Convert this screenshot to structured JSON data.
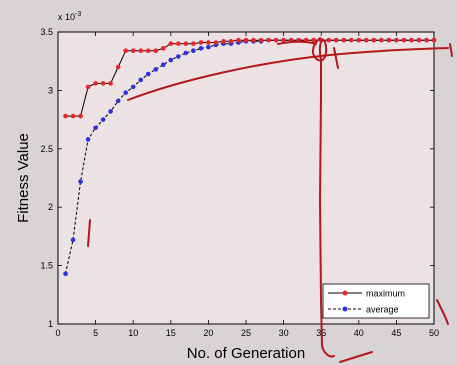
{
  "chart_data": {
    "type": "line",
    "title": "",
    "xlabel": "No. of Generation",
    "ylabel": "Fitness Value",
    "y_multiplier_label": "x 10",
    "y_multiplier_exponent": "-3",
    "xlim": [
      0,
      50
    ],
    "ylim": [
      0.001,
      0.0035
    ],
    "xticks": [
      0,
      5,
      10,
      15,
      20,
      25,
      30,
      35,
      40,
      45,
      50
    ],
    "xtick_labels": [
      "0",
      "5",
      "10",
      "15",
      "20",
      "25",
      "30",
      "35",
      "40",
      "45",
      "50"
    ],
    "yticks": [
      0.001,
      0.0015,
      0.002,
      0.0025,
      0.003,
      0.0035
    ],
    "ytick_labels": [
      "1",
      "1.5",
      "2",
      "2.5",
      "3",
      "3.5"
    ],
    "grid": false,
    "legend_position": "bottom-right",
    "series": [
      {
        "name": "maximum",
        "color": "#e8252a",
        "line_color": "#000000",
        "line_style": "solid",
        "x": [
          1,
          2,
          3,
          4,
          5,
          6,
          7,
          8,
          9,
          10,
          11,
          12,
          13,
          14,
          15,
          16,
          17,
          18,
          19,
          20,
          21,
          22,
          23,
          24,
          25,
          26,
          27,
          28,
          29,
          30,
          31,
          32,
          33,
          34,
          35,
          36,
          37,
          38,
          39,
          40,
          41,
          42,
          43,
          44,
          45,
          46,
          47,
          48,
          49,
          50
        ],
        "values": [
          0.00278,
          0.00278,
          0.00278,
          0.00303,
          0.00306,
          0.00306,
          0.00306,
          0.0032,
          0.00334,
          0.00334,
          0.00334,
          0.00334,
          0.00334,
          0.00336,
          0.0034,
          0.0034,
          0.0034,
          0.0034,
          0.00341,
          0.00341,
          0.00341,
          0.00342,
          0.00342,
          0.00343,
          0.00343,
          0.00343,
          0.00343,
          0.00343,
          0.00343,
          0.00343,
          0.00343,
          0.00343,
          0.00343,
          0.00343,
          0.00343,
          0.00343,
          0.00343,
          0.00343,
          0.00343,
          0.00343,
          0.00343,
          0.00343,
          0.00343,
          0.00343,
          0.00343,
          0.00343,
          0.00343,
          0.00343,
          0.00343,
          0.00343
        ]
      },
      {
        "name": "average",
        "color": "#2f2fe0",
        "line_color": "#000000",
        "line_style": "dashed",
        "x": [
          1,
          2,
          3,
          4,
          5,
          6,
          7,
          8,
          9,
          10,
          11,
          12,
          13,
          14,
          15,
          16,
          17,
          18,
          19,
          20,
          21,
          22,
          23,
          24,
          25,
          26,
          27,
          28,
          29,
          30,
          31,
          32,
          33,
          34,
          35,
          36,
          37,
          38,
          39,
          40,
          41,
          42,
          43,
          44,
          45,
          46,
          47,
          48,
          49,
          50
        ],
        "values": [
          0.00143,
          0.00172,
          0.00222,
          0.00258,
          0.00268,
          0.00275,
          0.00282,
          0.00291,
          0.00298,
          0.00303,
          0.00309,
          0.00314,
          0.00318,
          0.00322,
          0.00326,
          0.00329,
          0.00332,
          0.00334,
          0.00336,
          0.00337,
          0.00339,
          0.0034,
          0.0034,
          0.00341,
          0.00342,
          0.00342,
          0.00342,
          0.00343,
          0.00343,
          0.00343,
          0.00343,
          0.00343,
          0.00343,
          0.00343,
          0.00343,
          0.00343,
          0.00343,
          0.00343,
          0.00343,
          0.00343,
          0.00343,
          0.00343,
          0.00343,
          0.00343,
          0.00343,
          0.00343,
          0.00343,
          0.00343,
          0.00343,
          0.00343
        ]
      }
    ]
  }
}
